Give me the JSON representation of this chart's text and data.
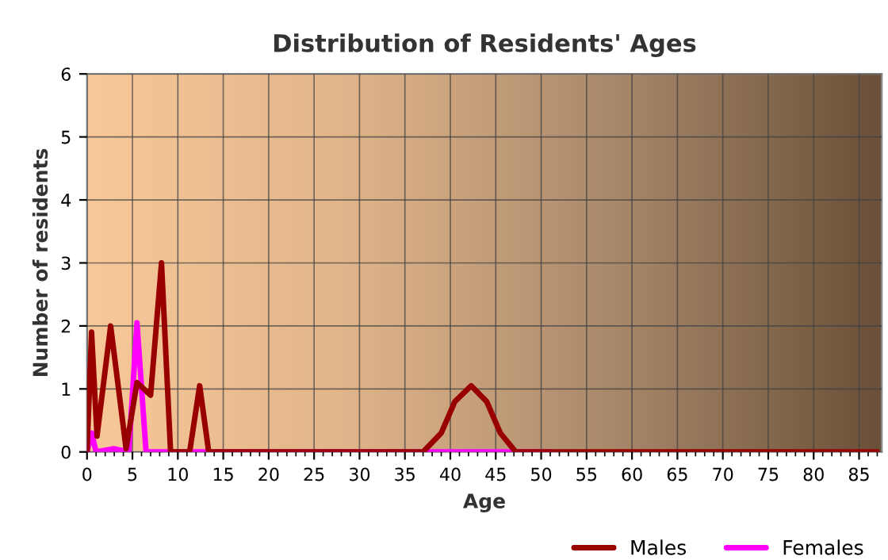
{
  "chart_data": {
    "type": "line",
    "title": "Distribution of Residents' Ages",
    "xlabel": "Age",
    "ylabel": "Number of residents",
    "series": [
      {
        "name": "Males",
        "color": "#990000",
        "x": [
          0,
          0.5,
          1.1,
          2.6,
          4.3,
          5.5,
          7,
          8.2,
          9.2,
          11.3,
          12.4,
          13.4,
          37,
          39,
          40.5,
          42.3,
          44,
          45.5,
          47.2,
          87
        ],
        "values": [
          0,
          1.9,
          0.25,
          2.0,
          0.05,
          1.1,
          0.9,
          3.0,
          0,
          0,
          1.05,
          0,
          0,
          0.3,
          0.8,
          1.05,
          0.8,
          0.3,
          0,
          0
        ]
      },
      {
        "name": "Females",
        "color": "#ff00ff",
        "x": [
          0,
          0.5,
          1,
          3,
          4.6,
          5.5,
          6.5,
          51
        ],
        "values": [
          0,
          0.3,
          0,
          0.05,
          0,
          2.05,
          0,
          0
        ]
      }
    ],
    "xlim": [
      0,
      87.5
    ],
    "ylim": [
      0,
      6
    ],
    "xticks": [
      0,
      5,
      10,
      15,
      20,
      25,
      30,
      35,
      40,
      45,
      50,
      55,
      60,
      65,
      70,
      75,
      80,
      85
    ],
    "yticks": [
      0,
      1,
      2,
      3,
      4,
      5,
      6
    ],
    "grid": true,
    "legend": "bottom",
    "marker": "none",
    "line_style": "solid"
  }
}
